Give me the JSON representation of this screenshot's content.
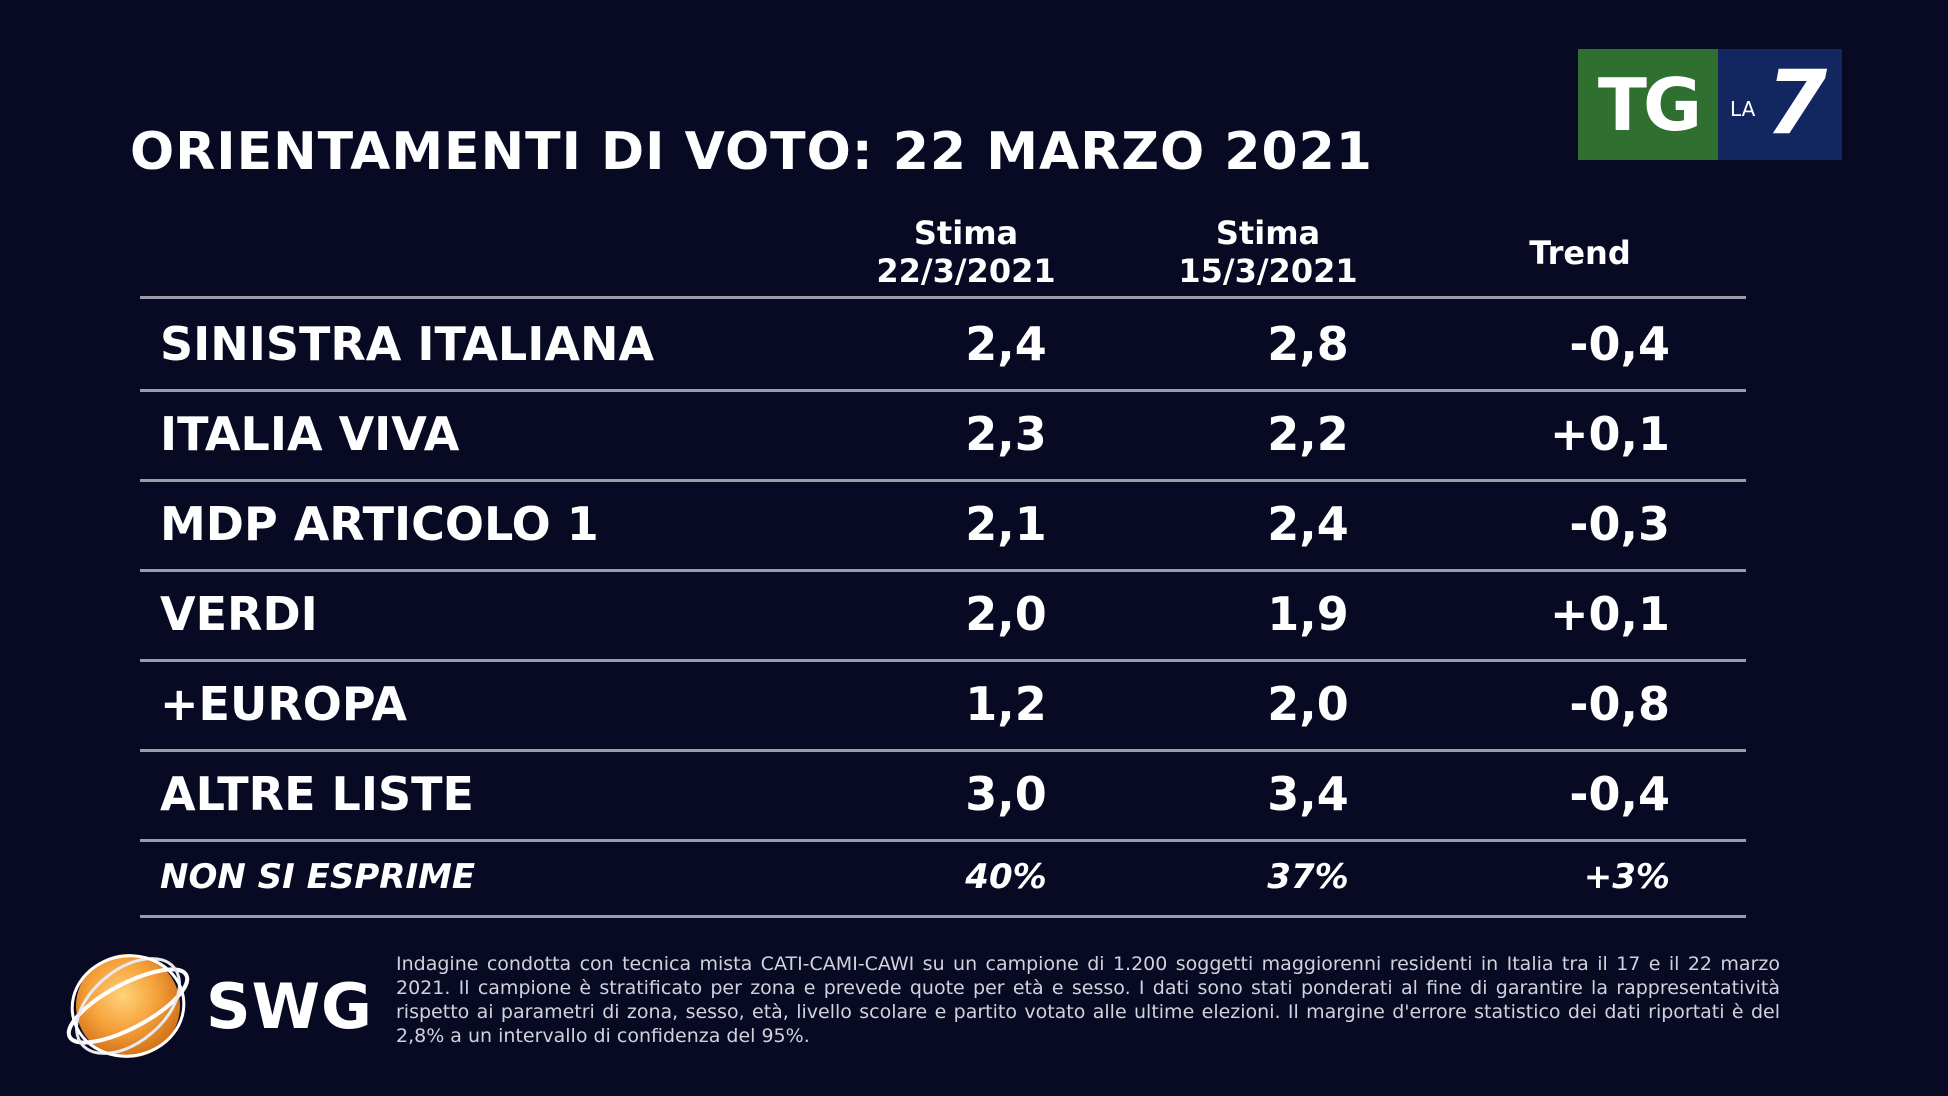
{
  "title": "ORIENTAMENTI DI VOTO: 22 MARZO 2021",
  "logo": {
    "tg": "TG",
    "la": "LA",
    "seven": "7"
  },
  "chart_data": {
    "type": "table",
    "title": "ORIENTAMENTI DI VOTO: 22 MARZO 2021",
    "columns": [
      "Stima 22/3/2021",
      "Stima 15/3/2021",
      "Trend"
    ],
    "column_headers": {
      "c1_line1": "Stima",
      "c1_line2": "22/3/2021",
      "c2_line1": "Stima",
      "c2_line2": "15/3/2021",
      "trend": "Trend"
    },
    "rows": [
      {
        "name": "SINISTRA ITALIANA",
        "v1": "2,4",
        "v2": "2,8",
        "trend": "-0,4"
      },
      {
        "name": "ITALIA VIVA",
        "v1": "2,3",
        "v2": "2,2",
        "trend": "+0,1"
      },
      {
        "name": "MDP ARTICOLO 1",
        "v1": "2,1",
        "v2": "2,4",
        "trend": "-0,3"
      },
      {
        "name": "VERDI",
        "v1": "2,0",
        "v2": "1,9",
        "trend": "+0,1"
      },
      {
        "name": "+EUROPA",
        "v1": "1,2",
        "v2": "2,0",
        "trend": "-0,8"
      },
      {
        "name": "ALTRE LISTE",
        "v1": "3,0",
        "v2": "3,4",
        "trend": "-0,4"
      },
      {
        "name": "NON SI ESPRIME",
        "v1": "40%",
        "v2": "37%",
        "trend": "+3%"
      }
    ]
  },
  "swg": {
    "label": "SWG"
  },
  "footnote": "Indagine condotta con tecnica mista CATI-CAMI-CAWI su un campione di 1.200 soggetti maggiorenni residenti in Italia tra il 17 e il 22 marzo 2021. Il campione è stratificato per zona e prevede quote per età e sesso. I dati sono stati ponderati al fine di garantire la rappresentatività rispetto ai parametri di zona, sesso, età, livello scolare e partito votato alle ultime elezioni. Il margine d'errore statistico dei dati riportati è del 2,8% a un intervallo di confidenza del 95%."
}
